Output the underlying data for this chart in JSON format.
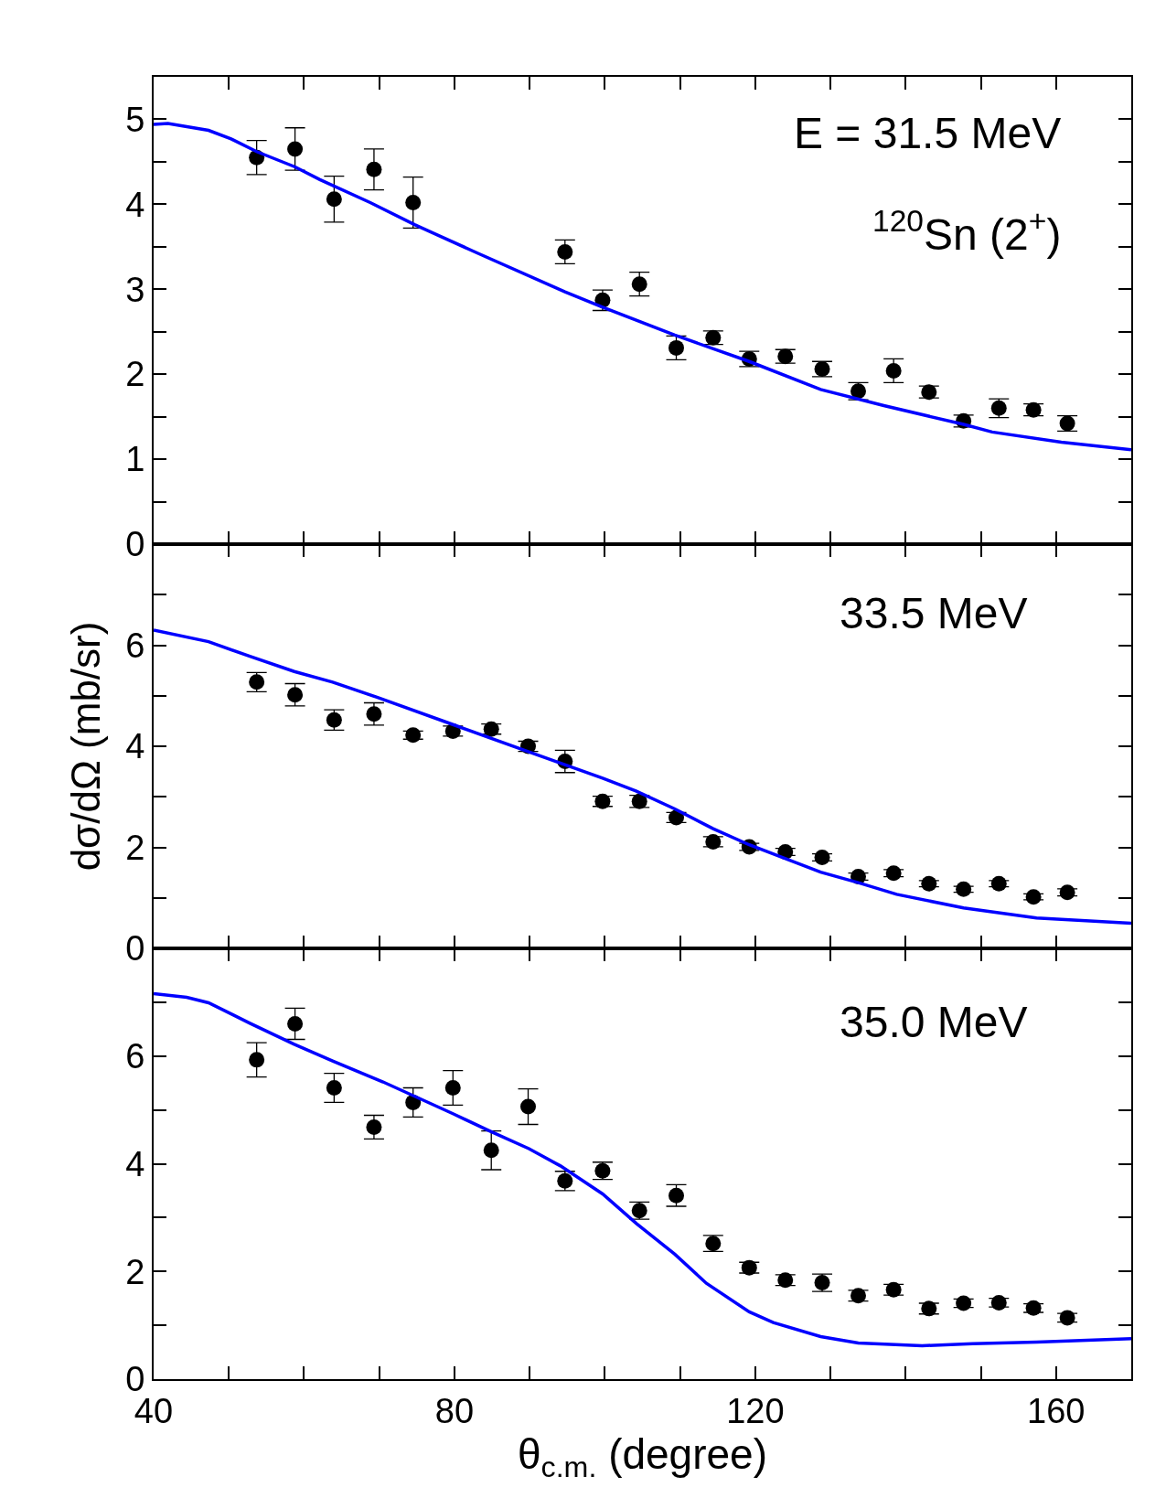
{
  "chart_data": [
    {
      "type": "scatter",
      "xlim": [
        40,
        170
      ],
      "xticks": [
        40,
        {
          "value": 50,
          "label": null
        },
        {
          "value": 60,
          "label": null
        },
        {
          "value": 70,
          "label": null
        },
        80,
        {
          "value": 90,
          "label": null
        },
        {
          "value": 100,
          "label": null
        },
        {
          "value": 110,
          "label": null
        },
        120,
        {
          "value": 130,
          "label": null
        },
        {
          "value": 140,
          "label": null
        },
        {
          "value": 150,
          "label": null
        },
        160,
        {
          "value": 170,
          "label": null
        }
      ],
      "ylim": [
        0,
        5.5
      ],
      "yticks": [
        0,
        {
          "value": 0.5,
          "label": null
        },
        1,
        {
          "value": 1.5,
          "label": null
        },
        2,
        {
          "value": 2.5,
          "label": null
        },
        3,
        {
          "value": 3.5,
          "label": null
        },
        4,
        {
          "value": 4.5,
          "label": null
        },
        5
      ],
      "grid": false,
      "tick_labels": "y",
      "annotations": [
        "E = 31.5 MeV",
        "$^{120}$Sn (2$^{+}$)"
      ],
      "series": [
        {
          "marker": "circle",
          "color": "#000000",
          "x": [
            53.7,
            58.8,
            64.0,
            69.3,
            74.5,
            94.7,
            99.7,
            104.6,
            109.5,
            114.4,
            119.2,
            124.0,
            128.9,
            133.7,
            138.4,
            143.1,
            147.7,
            152.4,
            157.0,
            161.5
          ],
          "values": [
            4.55,
            4.65,
            4.06,
            4.41,
            4.02,
            3.44,
            2.87,
            3.06,
            2.31,
            2.43,
            2.18,
            2.21,
            2.06,
            1.8,
            2.04,
            1.79,
            1.45,
            1.6,
            1.58,
            1.42
          ],
          "errors": [
            0.2,
            0.25,
            0.27,
            0.24,
            0.3,
            0.14,
            0.12,
            0.14,
            0.14,
            0.08,
            0.09,
            0.08,
            0.09,
            0.1,
            0.14,
            0.07,
            0.07,
            0.11,
            0.07,
            0.09
          ]
        },
        {
          "type": "line",
          "color": "#0000ff",
          "x": [
            40,
            41.9,
            47.3,
            50.3,
            53.7,
            58.8,
            62.1,
            68.8,
            74.7,
            83.2,
            94.7,
            99.7,
            109.3,
            119.2,
            128.7,
            137.1,
            147.7,
            151.5,
            160.7,
            170
          ],
          "values": [
            4.94,
            4.95,
            4.87,
            4.77,
            4.62,
            4.44,
            4.29,
            4.02,
            3.76,
            3.42,
            2.97,
            2.79,
            2.46,
            2.15,
            1.82,
            1.63,
            1.41,
            1.32,
            1.2,
            1.11
          ]
        }
      ]
    },
    {
      "type": "scatter",
      "xlim": [
        40,
        170
      ],
      "xticks": [
        40,
        {
          "value": 50,
          "label": null
        },
        {
          "value": 60,
          "label": null
        },
        {
          "value": 70,
          "label": null
        },
        80,
        {
          "value": 90,
          "label": null
        },
        {
          "value": 100,
          "label": null
        },
        {
          "value": 110,
          "label": null
        },
        120,
        {
          "value": 130,
          "label": null
        },
        {
          "value": 140,
          "label": null
        },
        {
          "value": 150,
          "label": null
        },
        160,
        {
          "value": 170,
          "label": null
        }
      ],
      "ylim": [
        0,
        8
      ],
      "yticks": [
        0,
        {
          "value": 1,
          "label": null
        },
        2,
        {
          "value": 3,
          "label": null
        },
        4,
        {
          "value": 5,
          "label": null
        },
        6,
        {
          "value": 7,
          "label": null
        }
      ],
      "grid": false,
      "tick_labels": "y",
      "ylabel": "dσ/dΩ (mb/sr)",
      "annotations": [
        "33.5 MeV"
      ],
      "series": [
        {
          "marker": "circle",
          "color": "#000000",
          "x": [
            53.7,
            58.8,
            64.0,
            69.3,
            74.5,
            79.8,
            84.9,
            89.8,
            94.7,
            99.7,
            104.6,
            109.5,
            114.4,
            119.2,
            124.0,
            128.9,
            133.7,
            138.4,
            143.1,
            147.7,
            152.4,
            157.0,
            161.5
          ],
          "values": [
            5.27,
            5.02,
            4.52,
            4.64,
            4.22,
            4.3,
            4.34,
            4.0,
            3.7,
            2.91,
            2.91,
            2.59,
            2.11,
            2.01,
            1.91,
            1.8,
            1.42,
            1.49,
            1.28,
            1.17,
            1.28,
            1.02,
            1.11
          ],
          "errors": [
            0.19,
            0.22,
            0.2,
            0.22,
            0.08,
            0.1,
            0.1,
            0.1,
            0.22,
            0.1,
            0.12,
            0.1,
            0.1,
            0.07,
            0.07,
            0.07,
            0.07,
            0.07,
            0.06,
            0.06,
            0.06,
            0.06,
            0.07
          ]
        },
        {
          "type": "line",
          "color": "#0000ff",
          "x": [
            40,
            47.3,
            52.8,
            58.7,
            63.8,
            69.7,
            79.8,
            89.9,
            99.7,
            104.2,
            109.3,
            114.4,
            119.2,
            128.7,
            133.7,
            138.8,
            147.7,
            157.4,
            170
          ],
          "values": [
            6.3,
            6.07,
            5.78,
            5.48,
            5.27,
            4.97,
            4.43,
            3.89,
            3.37,
            3.11,
            2.76,
            2.37,
            2.05,
            1.51,
            1.3,
            1.07,
            0.8,
            0.6,
            0.5
          ]
        }
      ]
    },
    {
      "type": "scatter",
      "xlim": [
        40,
        170
      ],
      "xticks": [
        40,
        {
          "value": 50,
          "label": null
        },
        {
          "value": 60,
          "label": null
        },
        {
          "value": 70,
          "label": null
        },
        80,
        {
          "value": 90,
          "label": null
        },
        {
          "value": 100,
          "label": null
        },
        {
          "value": 110,
          "label": null
        },
        120,
        {
          "value": 130,
          "label": null
        },
        {
          "value": 140,
          "label": null
        },
        {
          "value": 150,
          "label": null
        },
        160,
        {
          "value": 170,
          "label": null
        }
      ],
      "ylim": [
        0,
        8
      ],
      "yticks": [
        0,
        {
          "value": 1,
          "label": null
        },
        2,
        {
          "value": 3,
          "label": null
        },
        4,
        {
          "value": 5,
          "label": null
        },
        6,
        {
          "value": 7,
          "label": null
        }
      ],
      "grid": false,
      "xlabel": "θ$_{c.m.}$ (degree)",
      "annotations": [
        "35.0 MeV"
      ],
      "series": [
        {
          "marker": "circle",
          "color": "#000000",
          "x": [
            53.7,
            58.8,
            64.0,
            69.3,
            74.5,
            79.8,
            84.9,
            89.8,
            94.7,
            99.7,
            104.6,
            109.5,
            114.4,
            119.2,
            124.0,
            128.9,
            133.7,
            138.4,
            143.1,
            147.7,
            152.4,
            157.0,
            161.5
          ],
          "values": [
            5.93,
            6.6,
            5.41,
            4.68,
            5.14,
            5.41,
            4.25,
            5.06,
            3.68,
            3.87,
            3.13,
            3.41,
            2.52,
            2.07,
            1.84,
            1.79,
            1.55,
            1.66,
            1.31,
            1.41,
            1.42,
            1.32,
            1.14
          ],
          "errors": [
            0.32,
            0.29,
            0.27,
            0.22,
            0.27,
            0.32,
            0.36,
            0.33,
            0.18,
            0.16,
            0.16,
            0.2,
            0.15,
            0.1,
            0.1,
            0.16,
            0.1,
            0.1,
            0.1,
            0.08,
            0.08,
            0.08,
            0.08
          ]
        },
        {
          "type": "line",
          "color": "#0000ff",
          "x": [
            40,
            44.4,
            47.3,
            52.8,
            58.7,
            63.8,
            70.5,
            79.8,
            84.8,
            89.9,
            94.1,
            99.7,
            104.2,
            109.3,
            113.5,
            119.2,
            122.4,
            128.7,
            133.7,
            142.2,
            148.9,
            157.4,
            170
          ],
          "values": [
            7.16,
            7.09,
            6.99,
            6.61,
            6.22,
            5.91,
            5.52,
            4.93,
            4.6,
            4.28,
            3.96,
            3.44,
            2.89,
            2.32,
            1.78,
            1.25,
            1.05,
            0.79,
            0.67,
            0.62,
            0.66,
            0.69,
            0.75
          ]
        }
      ]
    }
  ]
}
